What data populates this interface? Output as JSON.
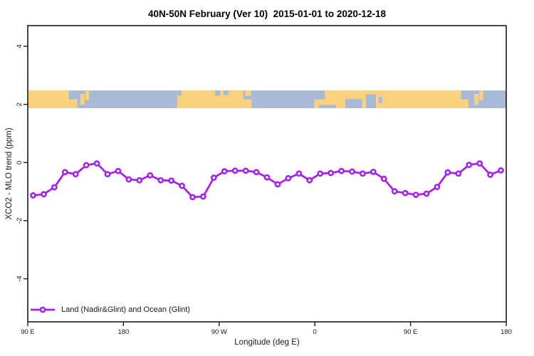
{
  "window": {
    "title": "40N-50N February (Ver 10)  2015-01-01 to 2020-12-18"
  },
  "legend": {
    "label": "Land (Nadir&Glint) and Ocean (Glint)"
  },
  "colors": {
    "series_line": "#A420F0",
    "marker_fill": "#ffffff",
    "land": "#FBD17E",
    "ocean": "#A9BAD8",
    "axis": "#1a1a1a",
    "background": "#ffffff"
  },
  "chart_data": {
    "type": "line",
    "title": "40N-50N February (Ver 10)  2015-01-01 to 2020-12-18",
    "xlabel": "Longitude (deg E)",
    "ylabel": "XCO2 - MLO trend (ppm)",
    "xlim": [
      90,
      540
    ],
    "ylim": [
      -5.48,
      4.71
    ],
    "grid": false,
    "frame": true,
    "legend_position": "bottom-left",
    "x_ticks": [
      {
        "value": 90,
        "label": "90 E"
      },
      {
        "value": 180,
        "label": "180"
      },
      {
        "value": 270,
        "label": "90 W"
      },
      {
        "value": 360,
        "label": "0"
      },
      {
        "value": 450,
        "label": "90 E"
      },
      {
        "value": 540,
        "label": "180"
      }
    ],
    "y_ticks": [
      {
        "value": -4,
        "label": "-4"
      },
      {
        "value": -2,
        "label": "-2"
      },
      {
        "value": 0,
        "label": "0"
      },
      {
        "value": 2,
        "label": "2"
      },
      {
        "value": 4,
        "label": "4"
      }
    ],
    "series": [
      {
        "name": "Land (Nadir&Glint) and Ocean (Glint)",
        "color": "#A420F0",
        "marker": "open-circle",
        "x": [
          95,
          105,
          115,
          125,
          135,
          145,
          155,
          165,
          175,
          185,
          195,
          205,
          215,
          225,
          235,
          245,
          255,
          265,
          275,
          285,
          295,
          305,
          315,
          325,
          335,
          345,
          355,
          365,
          375,
          385,
          395,
          405,
          415,
          425,
          435,
          445,
          455,
          465,
          475,
          485,
          495,
          505,
          515,
          525,
          535
        ],
        "y": [
          -1.13,
          -1.09,
          -0.85,
          -0.33,
          -0.4,
          -0.09,
          -0.03,
          -0.4,
          -0.29,
          -0.58,
          -0.61,
          -0.44,
          -0.61,
          -0.62,
          -0.8,
          -1.19,
          -1.17,
          -0.52,
          -0.3,
          -0.28,
          -0.28,
          -0.33,
          -0.51,
          -0.75,
          -0.54,
          -0.38,
          -0.61,
          -0.38,
          -0.36,
          -0.29,
          -0.31,
          -0.38,
          -0.32,
          -0.56,
          -0.99,
          -1.05,
          -1.11,
          -1.07,
          -0.84,
          -0.34,
          -0.38,
          -0.08,
          -0.03,
          -0.42,
          -0.27
        ]
      }
    ],
    "map_band": {
      "description": "40N-50N latitude land/ocean strip",
      "top_value": 2.48,
      "bottom_value": 1.87,
      "land_color": "#FBD17E",
      "ocean_color": "#A9BAD8",
      "land_patches": [
        [
          90,
          136.5,
          0,
          1
        ],
        [
          139.5,
          143.5,
          0.2,
          0.8
        ],
        [
          144.2,
          147.6,
          0,
          0.55
        ],
        [
          230.5,
          292.5,
          0,
          1
        ],
        [
          292.5,
          300.5,
          0.5,
          1
        ],
        [
          294.5,
          300.0,
          0,
          0.3
        ],
        [
          359.5,
          504.5,
          0,
          1
        ],
        [
          510.0,
          514.0,
          0.2,
          0.8
        ],
        [
          514.8,
          518.2,
          0,
          0.55
        ]
      ],
      "sea_patches": [
        [
          128.6,
          136.5,
          0,
          0.5
        ],
        [
          231.0,
          234.5,
          0,
          0.3
        ],
        [
          266.0,
          271.0,
          0,
          0.3
        ],
        [
          274.0,
          279.0,
          0,
          0.25
        ],
        [
          359.5,
          369.5,
          0,
          0.5
        ],
        [
          364.0,
          380.0,
          0.82,
          1
        ],
        [
          388.5,
          404.5,
          0.48,
          1
        ],
        [
          408.0,
          417.5,
          0.22,
          1
        ],
        [
          420.0,
          423.5,
          0.35,
          0.72
        ],
        [
          497.5,
          504.5,
          0,
          0.5
        ]
      ]
    }
  }
}
